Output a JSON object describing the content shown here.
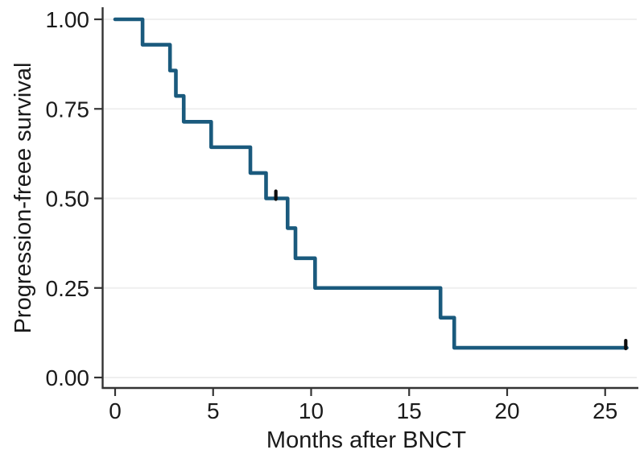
{
  "chart_data": {
    "type": "line",
    "subtype": "kaplan-meier-step",
    "title": "",
    "xlabel": "Months after BNCT",
    "ylabel": "Progression-freee survival",
    "xlim": [
      0,
      26.7
    ],
    "ylim": [
      0,
      1.0
    ],
    "xticks": [
      0,
      5,
      10,
      15,
      20,
      25
    ],
    "x_tick_labels": [
      "0",
      "5",
      "10",
      "15",
      "20",
      "25"
    ],
    "yticks": [
      0,
      0.25,
      0.5,
      0.75,
      1.0
    ],
    "y_tick_labels": [
      "0.00",
      "0.25",
      "0.50",
      "0.75",
      "1.00"
    ],
    "grid": "horizontal-only",
    "legend": "none",
    "series": [
      {
        "name": "Progression-free survival",
        "color": "#1a5a7d",
        "start": {
          "t": 0,
          "s": 1.0
        },
        "steps": [
          [
            1.4,
            0.929
          ],
          [
            2.8,
            0.857
          ],
          [
            3.1,
            0.786
          ],
          [
            3.5,
            0.714
          ],
          [
            4.9,
            0.643
          ],
          [
            6.9,
            0.571
          ],
          [
            7.7,
            0.5
          ],
          [
            8.8,
            0.417
          ],
          [
            9.2,
            0.333
          ],
          [
            10.2,
            0.25
          ],
          [
            16.6,
            0.167
          ],
          [
            17.3,
            0.083
          ]
        ],
        "end_t": 26.1,
        "censor_marks": [
          {
            "t": 8.2,
            "s": 0.5
          },
          {
            "t": 26.05,
            "s": 0.083
          }
        ]
      }
    ],
    "colors": {
      "curve": "#1a5a7d",
      "censor": "#0d0d0d",
      "axis": "#333333",
      "gridline": "#efefef",
      "text": "#1a1a1a"
    }
  }
}
